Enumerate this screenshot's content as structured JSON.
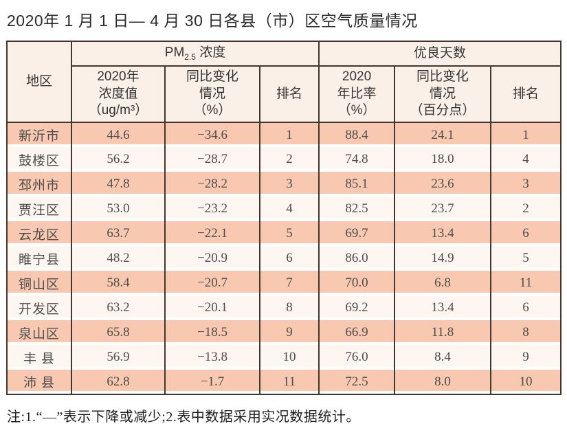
{
  "page_title": "2020年 1 月 1 日— 4 月 30 日各县（市）区空气质量情况",
  "table": {
    "region_header": "地区",
    "pm25_header": {
      "prefix": "PM",
      "sub": "2.5",
      "suffix": " 浓度"
    },
    "good_days_header": "优良天数",
    "subheaders": [
      "2020年\n浓度值\n（ug/m³）",
      "同比变化\n情况\n（%）",
      "排名",
      "2020\n年比率\n（%）",
      "同比变化\n情况\n（百分点）",
      "排名"
    ],
    "rows": [
      {
        "region": "新沂市",
        "pm_value": "44.6",
        "pm_change": "−34.6",
        "pm_rank": "1",
        "ratio": "88.4",
        "ratio_change": "24.1",
        "ratio_rank": "1"
      },
      {
        "region": "鼓楼区",
        "pm_value": "56.2",
        "pm_change": "−28.7",
        "pm_rank": "2",
        "ratio": "74.8",
        "ratio_change": "18.0",
        "ratio_rank": "4"
      },
      {
        "region": "邳州市",
        "pm_value": "47.8",
        "pm_change": "−28.2",
        "pm_rank": "3",
        "ratio": "85.1",
        "ratio_change": "23.6",
        "ratio_rank": "3"
      },
      {
        "region": "贾汪区",
        "pm_value": "53.0",
        "pm_change": "−23.2",
        "pm_rank": "4",
        "ratio": "82.5",
        "ratio_change": "23.7",
        "ratio_rank": "2"
      },
      {
        "region": "云龙区",
        "pm_value": "63.7",
        "pm_change": "−22.1",
        "pm_rank": "5",
        "ratio": "69.7",
        "ratio_change": "13.4",
        "ratio_rank": "6"
      },
      {
        "region": "睢宁县",
        "pm_value": "48.2",
        "pm_change": "−20.9",
        "pm_rank": "6",
        "ratio": "86.0",
        "ratio_change": "14.9",
        "ratio_rank": "5"
      },
      {
        "region": "铜山区",
        "pm_value": "58.4",
        "pm_change": "−20.7",
        "pm_rank": "7",
        "ratio": "70.0",
        "ratio_change": "6.8",
        "ratio_rank": "11"
      },
      {
        "region": "开发区",
        "pm_value": "63.2",
        "pm_change": "−20.1",
        "pm_rank": "8",
        "ratio": "69.2",
        "ratio_change": "13.4",
        "ratio_rank": "6"
      },
      {
        "region": "泉山区",
        "pm_value": "65.8",
        "pm_change": "−18.5",
        "pm_rank": "9",
        "ratio": "66.9",
        "ratio_change": "11.8",
        "ratio_rank": "8"
      },
      {
        "region": "丰 县",
        "pm_value": "56.9",
        "pm_change": "−13.8",
        "pm_rank": "10",
        "ratio": "76.0",
        "ratio_change": "8.4",
        "ratio_rank": "9"
      },
      {
        "region": "沛 县",
        "pm_value": "62.8",
        "pm_change": "−1.7",
        "pm_rank": "11",
        "ratio": "72.5",
        "ratio_change": "8.0",
        "ratio_rank": "10"
      }
    ]
  },
  "note": "注:1.“—”表示下降或减少;2.表中数据采用实况数据统计。",
  "colors": {
    "stripe_pink": "#f8c9b0",
    "stripe_light": "#fdf6f1",
    "header_bg": "#fbf0e8",
    "table_border": "#43362e"
  }
}
